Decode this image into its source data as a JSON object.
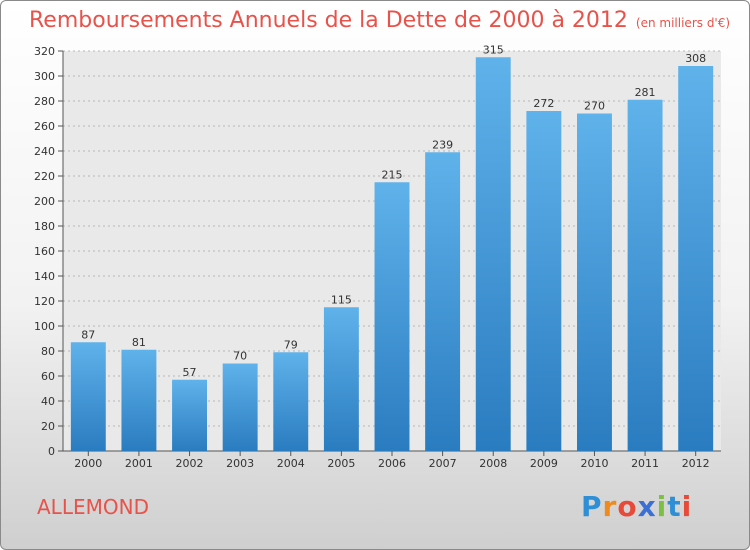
{
  "header": {
    "title": "Remboursements Annuels de la Dette de 2000 à 2012",
    "subtitle": "(en milliers d'€)"
  },
  "footer": {
    "town": "ALLEMOND",
    "brand_letters": [
      "P",
      "r",
      "o",
      "x",
      "i",
      "t",
      "i"
    ]
  },
  "colors": {
    "bar_top": "#5fb2ea",
    "bar_bottom": "#2a7cc0",
    "title": "#e8524a"
  },
  "chart_data": {
    "type": "bar",
    "categories": [
      "2000",
      "2001",
      "2002",
      "2003",
      "2004",
      "2005",
      "2006",
      "2007",
      "2008",
      "2009",
      "2010",
      "2011",
      "2012"
    ],
    "values": [
      87,
      81,
      57,
      70,
      79,
      115,
      215,
      239,
      315,
      272,
      270,
      281,
      308
    ],
    "ylim": [
      0,
      320
    ],
    "yticks": [
      0,
      20,
      40,
      60,
      80,
      100,
      120,
      140,
      160,
      180,
      200,
      220,
      240,
      260,
      280,
      300,
      320
    ],
    "grid": true,
    "data_labels": true
  }
}
